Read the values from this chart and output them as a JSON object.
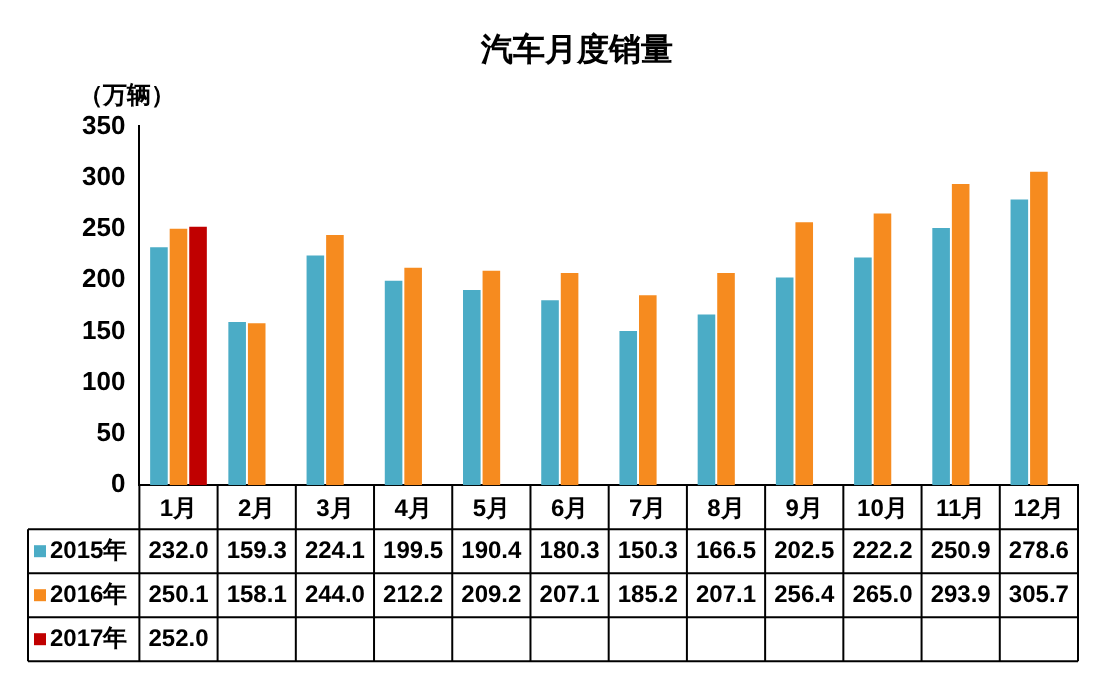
{
  "chart_data": {
    "type": "bar",
    "title": "汽车月度销量",
    "ylabel": "（万辆）",
    "categories": [
      "1月",
      "2月",
      "3月",
      "4月",
      "5月",
      "6月",
      "7月",
      "8月",
      "9月",
      "10月",
      "11月",
      "12月"
    ],
    "series": [
      {
        "name": "2015年",
        "color": "#4bacc6",
        "values": [
          232.0,
          159.3,
          224.1,
          199.5,
          190.4,
          180.3,
          150.3,
          166.5,
          202.5,
          222.2,
          250.9,
          278.6
        ],
        "value_labels": [
          "232.0",
          "159.3",
          "224.1",
          "199.5",
          "190.4",
          "180.3",
          "150.3",
          "166.5",
          "202.5",
          "222.2",
          "250.9",
          "278.6"
        ]
      },
      {
        "name": "2016年",
        "color": "#f68b1f",
        "values": [
          250.1,
          158.1,
          244.0,
          212.2,
          209.2,
          207.1,
          185.2,
          207.1,
          256.4,
          265.0,
          293.9,
          305.7
        ],
        "value_labels": [
          "250.1",
          "158.1",
          "244.0",
          "212.2",
          "209.2",
          "207.1",
          "185.2",
          "207.1",
          "256.4",
          "265.0",
          "293.9",
          "305.7"
        ]
      },
      {
        "name": "2017年",
        "color": "#c00000",
        "values": [
          252.0,
          null,
          null,
          null,
          null,
          null,
          null,
          null,
          null,
          null,
          null,
          null
        ],
        "value_labels": [
          "252.0",
          null,
          null,
          null,
          null,
          null,
          null,
          null,
          null,
          null,
          null,
          null
        ]
      }
    ],
    "ylim": [
      0,
      350
    ],
    "yticks": [
      0,
      50,
      100,
      150,
      200,
      250,
      300,
      350
    ],
    "grid": false,
    "legend": "bottom"
  }
}
